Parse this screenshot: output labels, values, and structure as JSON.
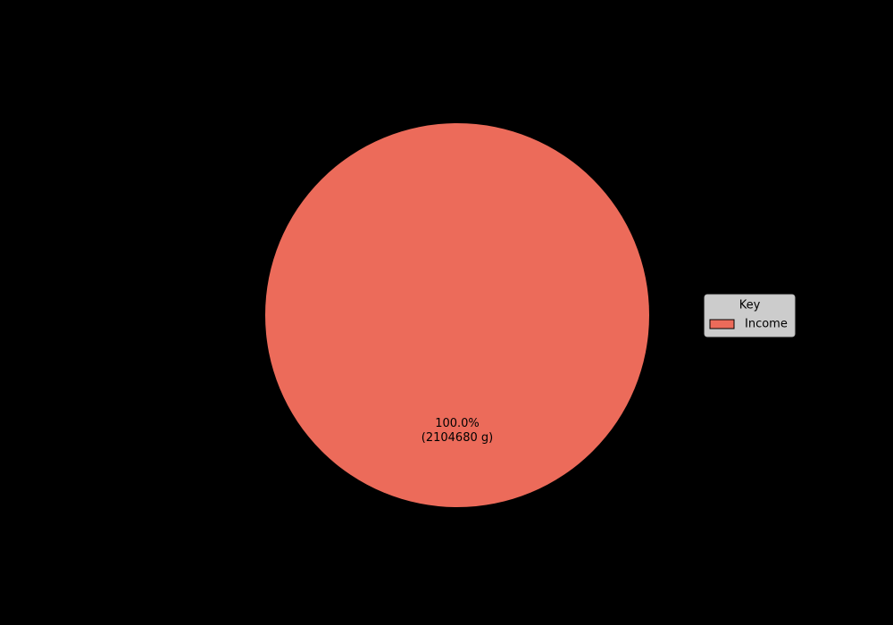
{
  "chart_data": {
    "type": "pie",
    "categories": [
      "Income"
    ],
    "values": [
      2104680
    ],
    "value_labels": [
      "100.0%\n(2104680 g)"
    ],
    "colors": [
      "#ec6b5a"
    ],
    "legend": {
      "title": "Key",
      "position": "right"
    }
  }
}
